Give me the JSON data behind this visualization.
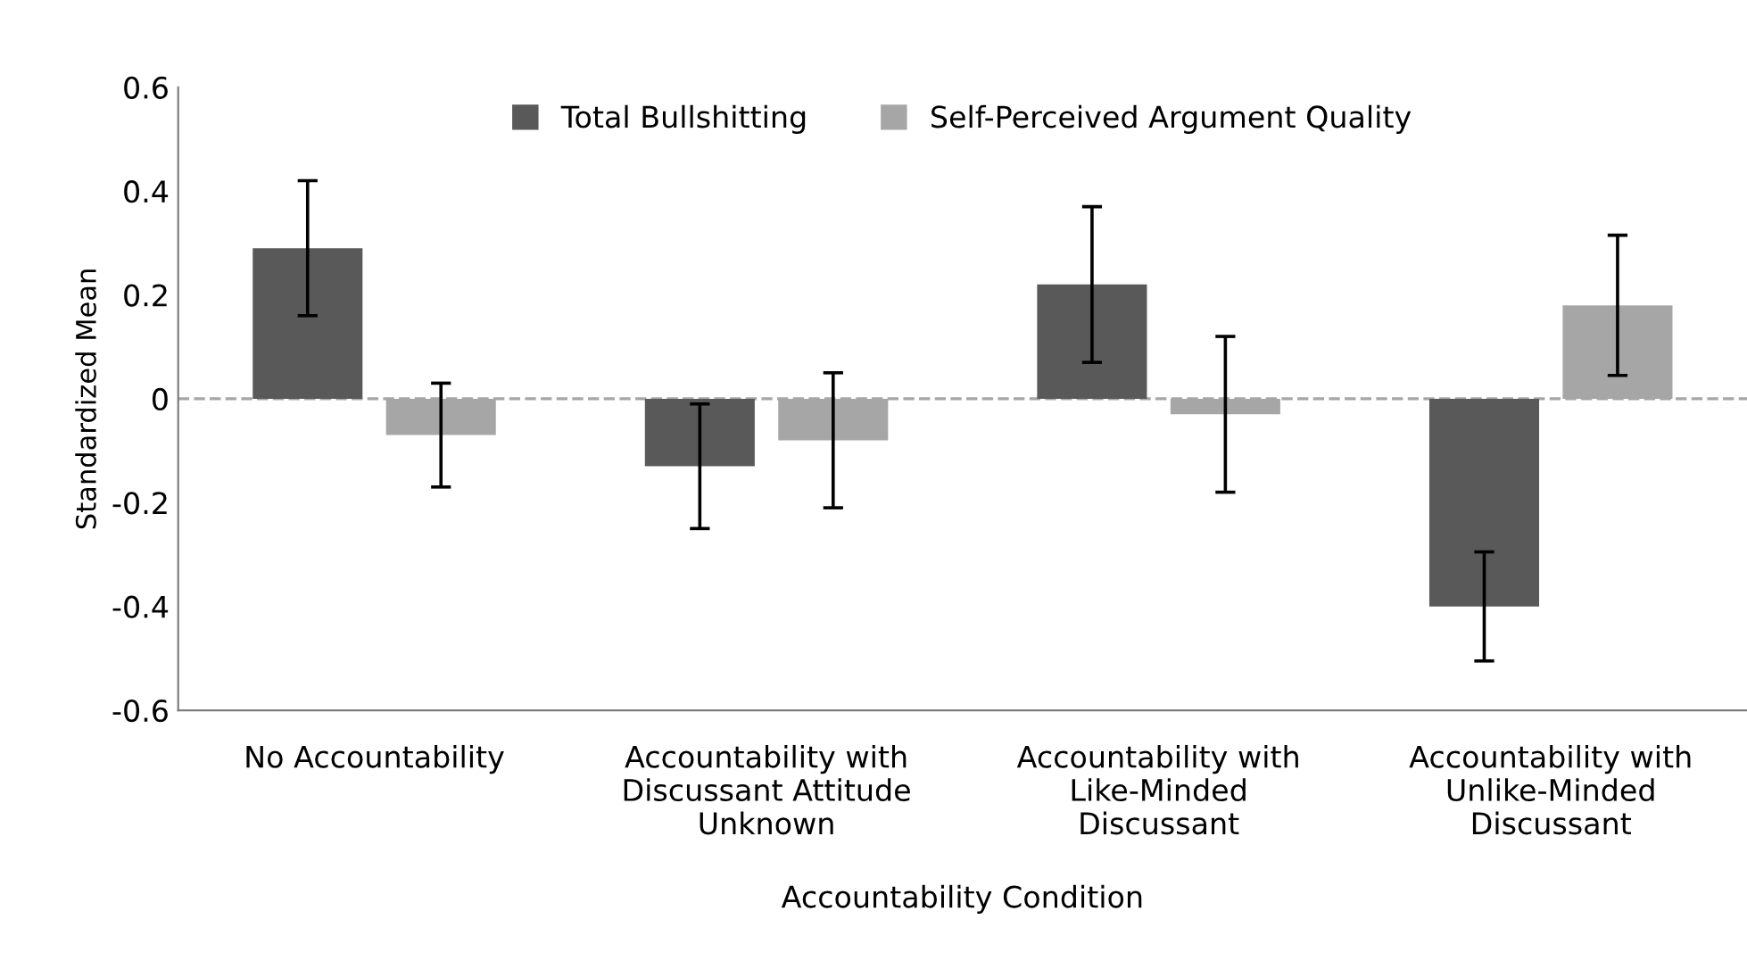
{
  "chart_data": {
    "type": "bar",
    "xlabel": "Accountability Condition",
    "ylabel": "Standardized Mean",
    "categories": [
      "No Accountability",
      "Accountability with\nDiscussant Attitude\nUnknown",
      "Accountability with\nLike-Minded\nDiscussant",
      "Accountability with\nUnlike-Minded\nDiscussant"
    ],
    "series": [
      {
        "name": "Total Bullshitting",
        "color": "#595959",
        "values": [
          0.29,
          -0.13,
          0.22,
          -0.4
        ],
        "errors": [
          0.13,
          0.12,
          0.15,
          0.105
        ]
      },
      {
        "name": "Self-Perceived Argument Quality",
        "color": "#a6a6a6",
        "values": [
          -0.07,
          -0.08,
          -0.03,
          0.18
        ],
        "errors": [
          0.1,
          0.13,
          0.15,
          0.135
        ]
      }
    ],
    "ylim": [
      -0.6,
      0.6
    ],
    "yticks": [
      {
        "value": -0.6,
        "label": "-0.6"
      },
      {
        "value": -0.4,
        "label": "-0.4"
      },
      {
        "value": -0.2,
        "label": "-0.2"
      },
      0,
      0.2,
      0.4,
      0.6
    ],
    "ref_lines": [
      {
        "axis": "y",
        "value": 0,
        "label": null,
        "color": "#a6a6a6",
        "line_style": "dashed"
      }
    ],
    "grid": false,
    "legend": "top"
  }
}
